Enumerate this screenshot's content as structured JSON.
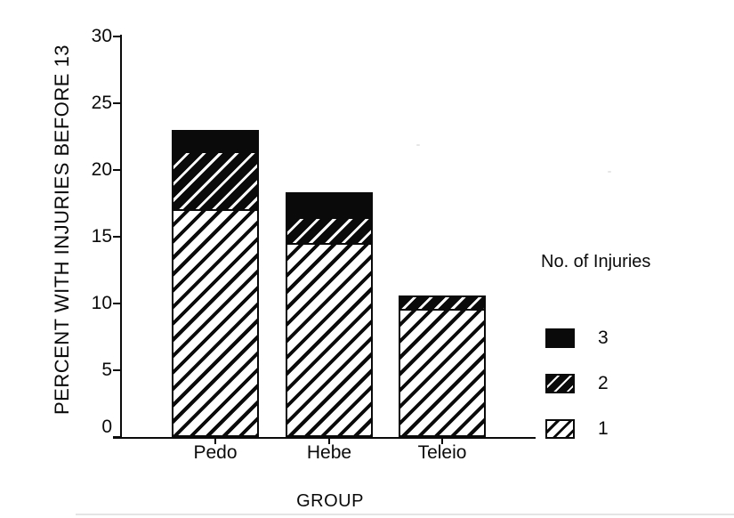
{
  "chart_data": {
    "type": "bar",
    "stacked": true,
    "categories": [
      "Pedo",
      "Hebe",
      "Teleio"
    ],
    "series": [
      {
        "name": "1",
        "pattern": "light-hatch",
        "values": [
          17.2,
          14.7,
          9.7
        ]
      },
      {
        "name": "2",
        "pattern": "dark-hatch",
        "values": [
          4.3,
          1.8,
          0.9
        ]
      },
      {
        "name": "3",
        "pattern": "solid-black",
        "values": [
          1.5,
          1.8,
          0
        ]
      }
    ],
    "totals": [
      23.0,
      18.3,
      10.6
    ],
    "xlabel": "GROUP",
    "ylabel": "PERCENT WITH INJURIES BEFORE 13",
    "ylim": [
      0,
      30
    ],
    "yticks": [
      0,
      5,
      10,
      15,
      20,
      25,
      30
    ],
    "legend_title": "No. of Injuries",
    "legend_position": "right",
    "legend_order": [
      "3",
      "2",
      "1"
    ],
    "grid": false
  },
  "colors": {
    "ink": "#0a0a0a",
    "paper": "#ffffff"
  }
}
